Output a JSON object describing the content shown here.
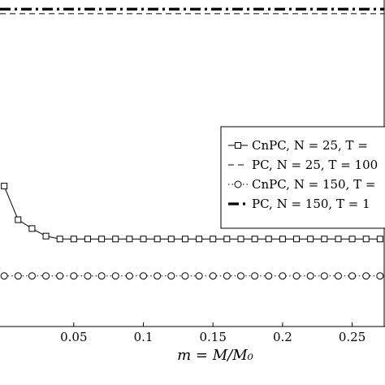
{
  "chart_data": {
    "type": "line",
    "xlabel": "m = M/M₀",
    "xlim": [
      -0.003,
      0.273
    ],
    "ylim": [
      0,
      1
    ],
    "grid": false,
    "legend_placement": "right",
    "x_ticks": [
      "0.05",
      "0.1",
      "0.15",
      "0.2",
      "0.25"
    ],
    "x_tick_values": [
      0.05,
      0.1,
      0.15,
      0.2,
      0.25
    ],
    "series": [
      {
        "name": "CnPC, N = 25, T =",
        "style": "solid-square",
        "x": [
          0.0,
          0.01,
          0.02,
          0.03,
          0.04,
          0.05,
          0.06,
          0.07,
          0.08,
          0.09,
          0.1,
          0.11,
          0.12,
          0.13,
          0.14,
          0.15,
          0.16,
          0.17,
          0.18,
          0.19,
          0.2,
          0.21,
          0.22,
          0.23,
          0.24,
          0.25,
          0.26,
          0.27
        ],
        "y": [
          0.43,
          0.327,
          0.3,
          0.277,
          0.268,
          0.268,
          0.268,
          0.268,
          0.268,
          0.268,
          0.268,
          0.268,
          0.268,
          0.268,
          0.268,
          0.268,
          0.268,
          0.268,
          0.268,
          0.268,
          0.268,
          0.268,
          0.268,
          0.268,
          0.268,
          0.268,
          0.268,
          0.268
        ]
      },
      {
        "name": "PC, N = 25, T = 100",
        "style": "dashed",
        "x": [
          -0.003,
          0.273
        ],
        "y": [
          0.958,
          0.958
        ]
      },
      {
        "name": "CnPC, N = 150, T =",
        "style": "dotted-circle",
        "x": [
          0.0,
          0.01,
          0.02,
          0.03,
          0.04,
          0.05,
          0.06,
          0.07,
          0.08,
          0.09,
          0.1,
          0.11,
          0.12,
          0.13,
          0.14,
          0.15,
          0.16,
          0.17,
          0.18,
          0.19,
          0.2,
          0.21,
          0.22,
          0.23,
          0.24,
          0.25,
          0.26,
          0.27
        ],
        "y": [
          0.155,
          0.155,
          0.155,
          0.155,
          0.155,
          0.155,
          0.155,
          0.155,
          0.155,
          0.155,
          0.155,
          0.155,
          0.155,
          0.155,
          0.155,
          0.155,
          0.155,
          0.155,
          0.155,
          0.155,
          0.155,
          0.155,
          0.155,
          0.155,
          0.155,
          0.155,
          0.155,
          0.155
        ]
      },
      {
        "name": "PC, N = 150, T = 1",
        "style": "thick-dashdot",
        "x": [
          -0.003,
          0.273
        ],
        "y": [
          0.972,
          0.972
        ]
      }
    ]
  }
}
